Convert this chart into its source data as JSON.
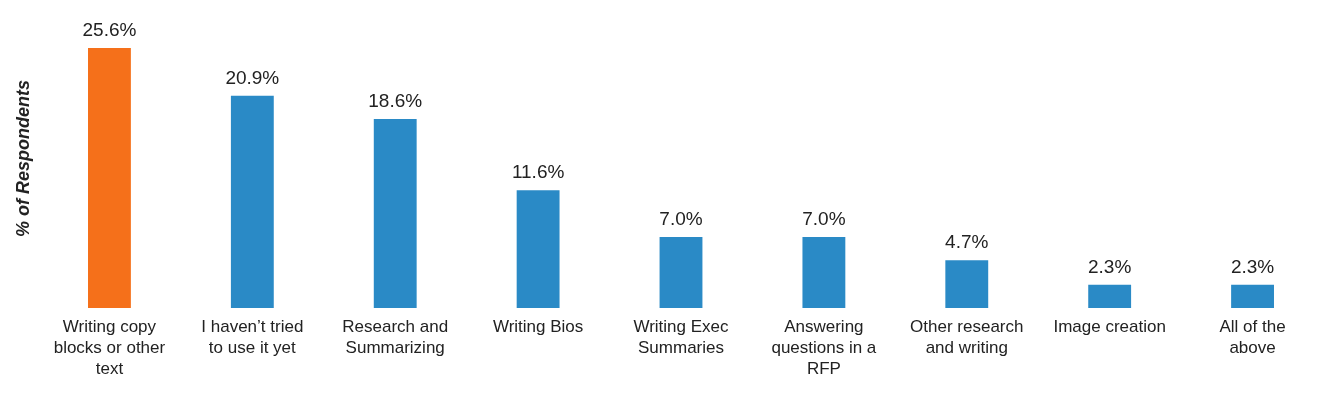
{
  "chart_data": {
    "type": "bar",
    "ylabel": "% of Respondents",
    "categories": [
      "Writing copy blocks or other text",
      "I haven’t tried to use it yet",
      "Research and Summarizing",
      "Writing Bios",
      "Writing Exec Summaries",
      "Answering questions in a RFP",
      "Other research and writing",
      "Image creation",
      "All of the above"
    ],
    "values": [
      25.6,
      20.9,
      18.6,
      11.6,
      7.0,
      7.0,
      4.7,
      2.3,
      2.3
    ],
    "colors": [
      "#f5701a",
      "#2a8ac6",
      "#2a8ac6",
      "#2a8ac6",
      "#2a8ac6",
      "#2a8ac6",
      "#2a8ac6",
      "#2a8ac6",
      "#2a8ac6"
    ],
    "value_labels": [
      "25.6%",
      "20.9%",
      "18.6%",
      "11.6%",
      "7.0%",
      "7.0%",
      "4.7%",
      "2.3%",
      "2.3%"
    ],
    "grid": false,
    "legend": false
  }
}
